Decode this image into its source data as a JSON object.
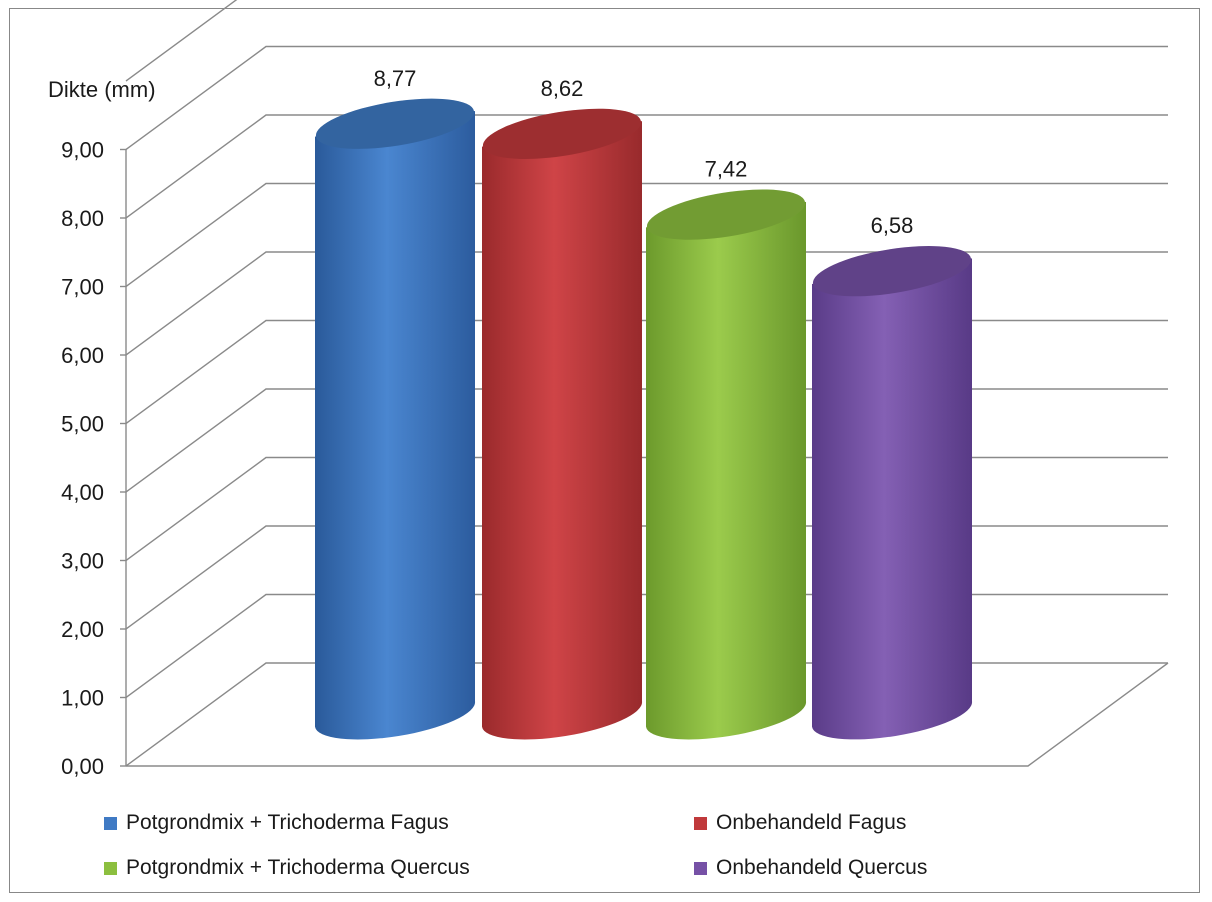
{
  "chart_data": {
    "type": "bar",
    "style": "3d-cylinder",
    "ylabel": "Dikte (mm)",
    "ylim": [
      0,
      10
    ],
    "yticks": [
      "0,00",
      "1,00",
      "2,00",
      "3,00",
      "4,00",
      "5,00",
      "6,00",
      "7,00",
      "8,00",
      "9,00"
    ],
    "grid": true,
    "legend_position": "bottom",
    "series": [
      {
        "name": "Potgrondmix + Trichoderma Fagus",
        "value": 8.77,
        "label": "8,77",
        "color": "#3f7ac4"
      },
      {
        "name": "Onbehandeld Fagus",
        "value": 8.62,
        "label": "8,62",
        "color": "#c0393b"
      },
      {
        "name": "Potgrondmix + Trichoderma Quercus",
        "value": 7.42,
        "label": "7,42",
        "color": "#8cbf3f"
      },
      {
        "name": "Onbehandeld Quercus",
        "value": 6.58,
        "label": "6,58",
        "color": "#7651a6"
      }
    ]
  }
}
